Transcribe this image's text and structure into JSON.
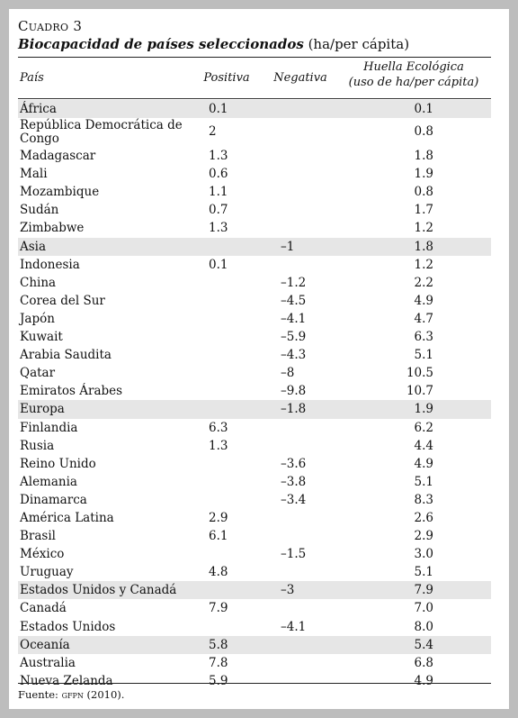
{
  "table": {
    "label_prefix": "Cuadro",
    "label_number": "3",
    "title_italic": "Biocapacidad de países seleccionados",
    "title_units": "(ha/per cápita)",
    "headers": {
      "country": "País",
      "positive": "Positiva",
      "negative": "Negativa",
      "footprint_line1": "Huella Ecológica",
      "footprint_line2": "(uso de ha/per cápita)"
    },
    "rows": [
      {
        "name": "África",
        "positive": "0.1",
        "negative": "",
        "footprint": "0.1",
        "region": true
      },
      {
        "name": "República Democrática de Congo",
        "positive": "2",
        "negative": "",
        "footprint": "0.8",
        "region": false,
        "tall": true
      },
      {
        "name": "Madagascar",
        "positive": "1.3",
        "negative": "",
        "footprint": "1.8",
        "region": false
      },
      {
        "name": "Mali",
        "positive": "0.6",
        "negative": "",
        "footprint": "1.9",
        "region": false
      },
      {
        "name": "Mozambique",
        "positive": "1.1",
        "negative": "",
        "footprint": "0.8",
        "region": false
      },
      {
        "name": "Sudán",
        "positive": "0.7",
        "negative": "",
        "footprint": "1.7",
        "region": false
      },
      {
        "name": "Zimbabwe",
        "positive": "1.3",
        "negative": "",
        "footprint": "1.2",
        "region": false
      },
      {
        "name": "Asia",
        "positive": "",
        "negative": "–1",
        "footprint": "1.8",
        "region": true
      },
      {
        "name": "Indonesia",
        "positive": "0.1",
        "negative": "",
        "footprint": "1.2",
        "region": false
      },
      {
        "name": "China",
        "positive": "",
        "negative": "–1.2",
        "footprint": "2.2",
        "region": false
      },
      {
        "name": "Corea del Sur",
        "positive": "",
        "negative": "–4.5",
        "footprint": "4.9",
        "region": false
      },
      {
        "name": "Japón",
        "positive": "",
        "negative": "–4.1",
        "footprint": "4.7",
        "region": false
      },
      {
        "name": "Kuwait",
        "positive": "",
        "negative": "–5.9",
        "footprint": "6.3",
        "region": false
      },
      {
        "name": "Arabia Saudita",
        "positive": "",
        "negative": "–4.3",
        "footprint": "5.1",
        "region": false
      },
      {
        "name": "Qatar",
        "positive": "",
        "negative": "–8",
        "footprint": "10.5",
        "region": false
      },
      {
        "name": "Emiratos Árabes",
        "positive": "",
        "negative": "–9.8",
        "footprint": "10.7",
        "region": false
      },
      {
        "name": "Europa",
        "positive": "",
        "negative": "–1.8",
        "footprint": "1.9",
        "region": true
      },
      {
        "name": "Finlandia",
        "positive": "6.3",
        "negative": "",
        "footprint": "6.2",
        "region": false
      },
      {
        "name": "Rusia",
        "positive": "1.3",
        "negative": "",
        "footprint": "4.4",
        "region": false
      },
      {
        "name": "Reino Unido",
        "positive": "",
        "negative": "–3.6",
        "footprint": "4.9",
        "region": false
      },
      {
        "name": "Alemania",
        "positive": "",
        "negative": "–3.8",
        "footprint": "5.1",
        "region": false
      },
      {
        "name": "Dinamarca",
        "positive": "",
        "negative": "–3.4",
        "footprint": "8.3",
        "region": false
      },
      {
        "name": "América Latina",
        "positive": "2.9",
        "negative": "",
        "footprint": "2.6",
        "region": false
      },
      {
        "name": "Brasil",
        "positive": "6.1",
        "negative": "",
        "footprint": "2.9",
        "region": false
      },
      {
        "name": "México",
        "positive": "",
        "negative": "–1.5",
        "footprint": "3.0",
        "region": false
      },
      {
        "name": "Uruguay",
        "positive": "4.8",
        "negative": "",
        "footprint": "5.1",
        "region": false
      },
      {
        "name": "Estados Unidos y Canadá",
        "positive": "",
        "negative": "–3",
        "footprint": "7.9",
        "region": true
      },
      {
        "name": "Canadá",
        "positive": "7.9",
        "negative": "",
        "footprint": "7.0",
        "region": false
      },
      {
        "name": "Estados Unidos",
        "positive": "",
        "negative": "–4.1",
        "footprint": "8.0",
        "region": false
      },
      {
        "name": "Oceanía",
        "positive": "5.8",
        "negative": "",
        "footprint": "5.4",
        "region": true
      },
      {
        "name": "Australia",
        "positive": "7.8",
        "negative": "",
        "footprint": "6.8",
        "region": false
      },
      {
        "name": "Nueva Zelanda",
        "positive": "5.9",
        "negative": "",
        "footprint": "4.9",
        "region": false
      }
    ],
    "source_prefix": "Fuente:",
    "source_org": "gfpn",
    "source_year": "(2010)."
  },
  "colors": {
    "page_background": "#bdbdbd",
    "sheet_background": "#ffffff",
    "region_row_shading": "#e6e6e6"
  }
}
